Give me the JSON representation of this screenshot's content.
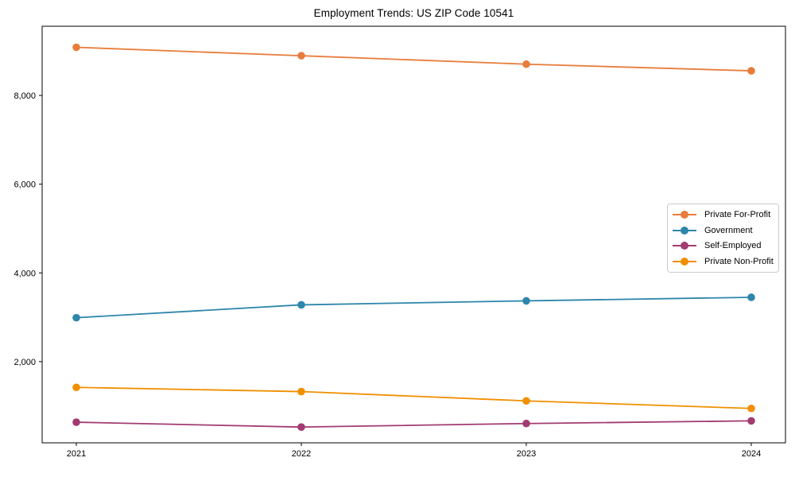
{
  "chart_data": {
    "type": "line",
    "title": "Employment Trends: US ZIP Code 10541",
    "xlabel": "",
    "ylabel": "",
    "x": [
      2021,
      2022,
      2023,
      2024
    ],
    "x_tick_labels": [
      "2021",
      "2022",
      "2023",
      "2024"
    ],
    "series": [
      {
        "name": "Private For-Profit",
        "color": "#E87D3B",
        "values": [
          9085,
          8895,
          8705,
          8555
        ]
      },
      {
        "name": "Government",
        "color": "#2E86AB",
        "values": [
          2990,
          3280,
          3370,
          3450
        ]
      },
      {
        "name": "Self-Employed",
        "color": "#A23B72",
        "values": [
          635,
          525,
          605,
          665
        ]
      },
      {
        "name": "Private Non-Profit",
        "color": "#F18F01",
        "values": [
          1420,
          1325,
          1115,
          945
        ]
      }
    ],
    "ylim": [
      170,
      9560
    ],
    "yticks": [
      {
        "value": 2000,
        "label": "2,000"
      },
      {
        "value": 4000,
        "label": "4,000"
      },
      {
        "value": 6000,
        "label": "6,000"
      },
      {
        "value": 8000,
        "label": "8,000"
      }
    ],
    "grid": false,
    "legend_position": "center-right",
    "axis_color": "#000000",
    "background": "#FFFFFF",
    "marker": "circle"
  }
}
